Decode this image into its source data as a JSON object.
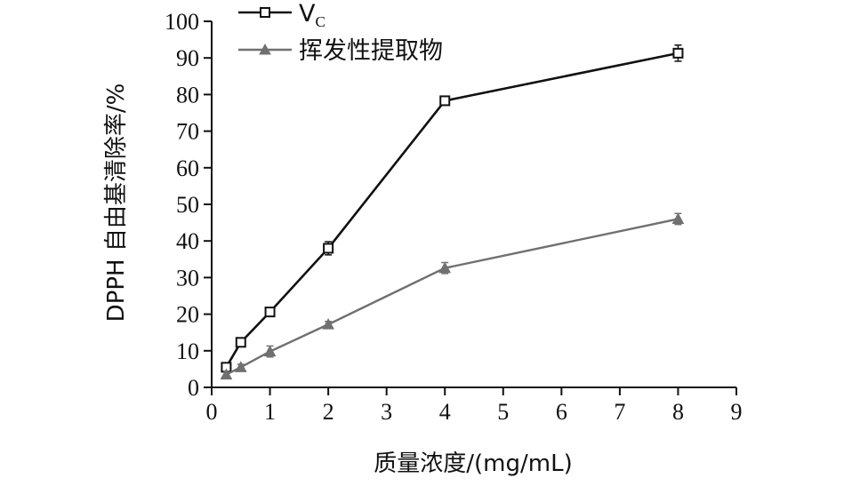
{
  "chart_data": {
    "type": "line",
    "xlabel": "质量浓度/(mg/mL)",
    "ylabel": "DPPH 自由基清除率/%",
    "xlim": [
      0,
      9
    ],
    "ylim": [
      0,
      100
    ],
    "xticks": [
      0,
      1,
      2,
      3,
      4,
      5,
      6,
      7,
      8,
      9
    ],
    "yticks": [
      0,
      10,
      20,
      30,
      40,
      50,
      60,
      70,
      80,
      90,
      100
    ],
    "grid": false,
    "legend_position": "top-left",
    "series": [
      {
        "name": "V",
        "name_subscript": "C",
        "color": "#111111",
        "marker": "open-square",
        "x": [
          0.25,
          0.5,
          1,
          2,
          4,
          8
        ],
        "y": [
          5.5,
          12.3,
          20.6,
          38.0,
          78.3,
          91.3
        ],
        "error": [
          1.0,
          1.0,
          1.2,
          1.8,
          1.0,
          2.2
        ]
      },
      {
        "name": "挥发性提取物",
        "color": "#707070",
        "marker": "filled-triangle",
        "x": [
          0.25,
          0.5,
          1,
          2,
          4,
          8
        ],
        "y": [
          3.5,
          5.5,
          9.8,
          17.2,
          32.6,
          46.0
        ],
        "error": [
          0.6,
          0.8,
          1.5,
          0.8,
          1.5,
          1.5
        ]
      }
    ]
  }
}
